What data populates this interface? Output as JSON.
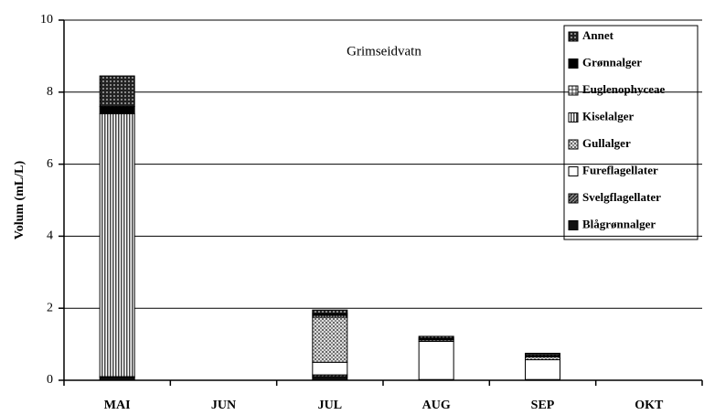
{
  "chart_data": {
    "type": "bar",
    "stacked": true,
    "title": "Grimseidvatn",
    "y_label": "Volum (mL/L)",
    "categories": [
      "MAI",
      "JUN",
      "JUL",
      "AUG",
      "SEP",
      "OKT"
    ],
    "series": [
      {
        "name": "Blågrønnalger",
        "values": [
          0.08,
          0,
          0.1,
          0.02,
          0.02,
          0
        ]
      },
      {
        "name": "Svelgflagellater",
        "values": [
          0.02,
          0,
          0.05,
          0,
          0,
          0
        ]
      },
      {
        "name": "Fureflagellater",
        "values": [
          0,
          0,
          0.35,
          1.06,
          0.55,
          0
        ]
      },
      {
        "name": "Gullalger",
        "values": [
          0,
          0,
          1.25,
          0.04,
          0.08,
          0
        ]
      },
      {
        "name": "Kiselalger",
        "values": [
          7.3,
          0,
          0.05,
          0.02,
          0.02,
          0
        ]
      },
      {
        "name": "Euglenophyceae",
        "values": [
          0,
          0,
          0,
          0,
          0,
          0
        ]
      },
      {
        "name": "Grønnalger",
        "values": [
          0.2,
          0,
          0.05,
          0.03,
          0.02,
          0
        ]
      },
      {
        "name": "Annet",
        "values": [
          0.85,
          0,
          0.1,
          0.05,
          0.06,
          0
        ]
      }
    ],
    "ylim": [
      0,
      10
    ],
    "yticks": [
      0,
      2,
      4,
      6,
      8,
      10
    ],
    "grid": true,
    "legend": "upper right"
  }
}
